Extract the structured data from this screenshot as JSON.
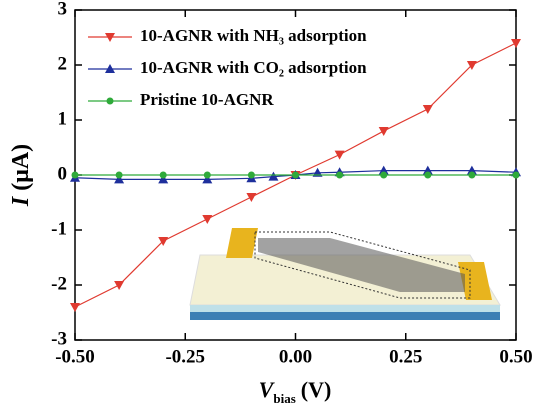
{
  "chart_data": {
    "type": "line",
    "x_label": "V",
    "x_label_sub": "bias",
    "x_label_unit": "(V)",
    "y_label": "I",
    "y_label_unit": "(μA)",
    "xlim": [
      -0.5,
      0.5
    ],
    "xticks": [
      {
        "value": -0.5,
        "label": "-0.50"
      },
      {
        "value": -0.25,
        "label": "-0.25"
      },
      {
        "value": 0,
        "label": "0.00"
      },
      {
        "value": 0.25,
        "label": "0.25"
      },
      {
        "value": 0.5,
        "label": "0.50"
      }
    ],
    "ylim": [
      -3,
      3
    ],
    "yticks": [
      -3,
      -2,
      -1,
      0,
      1,
      2,
      3
    ],
    "legend": "upper left",
    "series": [
      {
        "name": "10-AGNR with NH₃ adsorption",
        "color": "#e03a30",
        "marker": "triangle-down",
        "x": [
          -0.5,
          -0.4,
          -0.3,
          -0.2,
          -0.1,
          0,
          0.1,
          0.2,
          0.3,
          0.4,
          0.5
        ],
        "values": [
          -2.4,
          -2.0,
          -1.2,
          -0.8,
          -0.4,
          0,
          0.37,
          0.8,
          1.2,
          2.0,
          2.4
        ]
      },
      {
        "name": "10-AGNR with CO₂ adsorption",
        "color": "#1e2f9c",
        "marker": "triangle-up",
        "x": [
          -0.5,
          -0.4,
          -0.3,
          -0.2,
          -0.1,
          -0.05,
          0,
          0.05,
          0.1,
          0.2,
          0.3,
          0.4,
          0.5
        ],
        "values": [
          -0.05,
          -0.08,
          -0.08,
          -0.08,
          -0.06,
          -0.03,
          0,
          0.04,
          0.05,
          0.08,
          0.08,
          0.08,
          0.05
        ]
      },
      {
        "name": "Pristine 10-AGNR",
        "color": "#2faa3a",
        "marker": "circle",
        "x": [
          -0.5,
          -0.4,
          -0.3,
          -0.2,
          -0.1,
          0,
          0.1,
          0.2,
          0.3,
          0.4,
          0.5
        ],
        "values": [
          0,
          0,
          0,
          0,
          0,
          0,
          0,
          0,
          0,
          0,
          0
        ]
      }
    ]
  }
}
